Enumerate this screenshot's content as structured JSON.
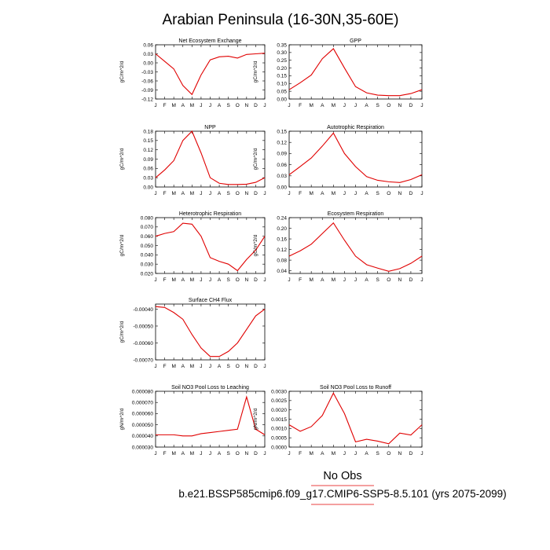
{
  "title": "Arabian Peninsula (16-30N,35-60E)",
  "footer": {
    "obs_label": "No Obs",
    "run_label": "b.e21.BSSP585cmip6.f09_g17.CMIP6-SSP5-8.5.101 (yrs 2075-2099)"
  },
  "colors": {
    "series": "#e00000",
    "footer_line": "#e00000"
  },
  "chart_data": [
    {
      "type": "line",
      "title": "Net Ecosystem Exchange",
      "ylabel": "gC/m^2/d",
      "x": [
        "J",
        "F",
        "M",
        "A",
        "M",
        "J",
        "J",
        "A",
        "S",
        "O",
        "N",
        "D",
        "J"
      ],
      "yticks": [
        "0.06",
        "0.03",
        "0.00",
        "-0.03",
        "-0.06",
        "-0.09",
        "-0.12"
      ],
      "ylim": [
        -0.12,
        0.06
      ],
      "series": [
        {
          "values": [
            0.03,
            0.005,
            -0.02,
            -0.075,
            -0.105,
            -0.04,
            0.01,
            0.02,
            0.022,
            0.016,
            0.028,
            0.03,
            0.032
          ]
        }
      ]
    },
    {
      "type": "line",
      "title": "GPP",
      "ylabel": "gC/m^2/d",
      "x": [
        "J",
        "F",
        "M",
        "A",
        "M",
        "J",
        "J",
        "A",
        "S",
        "O",
        "N",
        "D",
        "J"
      ],
      "yticks": [
        "0.35",
        "0.30",
        "0.25",
        "0.20",
        "0.15",
        "0.10",
        "0.05",
        "0.00"
      ],
      "ylim": [
        0,
        0.35
      ],
      "series": [
        {
          "values": [
            0.06,
            0.105,
            0.155,
            0.26,
            0.325,
            0.2,
            0.08,
            0.04,
            0.025,
            0.022,
            0.022,
            0.035,
            0.06
          ]
        }
      ]
    },
    {
      "type": "line",
      "title": "NPP",
      "ylabel": "gC/m^2/d",
      "x": [
        "J",
        "F",
        "M",
        "A",
        "M",
        "J",
        "J",
        "A",
        "S",
        "O",
        "N",
        "D",
        "J"
      ],
      "yticks": [
        "0.18",
        "0.15",
        "0.12",
        "0.09",
        "0.06",
        "0.03",
        "0.00"
      ],
      "ylim": [
        0,
        0.18
      ],
      "series": [
        {
          "values": [
            0.03,
            0.055,
            0.085,
            0.15,
            0.18,
            0.11,
            0.03,
            0.012,
            0.008,
            0.008,
            0.009,
            0.015,
            0.03
          ]
        }
      ]
    },
    {
      "type": "line",
      "title": "Autotrophic Respiration",
      "ylabel": "gC/m^2/d",
      "x": [
        "J",
        "F",
        "M",
        "A",
        "M",
        "J",
        "J",
        "A",
        "S",
        "O",
        "N",
        "D",
        "J"
      ],
      "yticks": [
        "0.15",
        "0.12",
        "0.09",
        "0.06",
        "0.03",
        "0.00"
      ],
      "ylim": [
        0,
        0.15
      ],
      "series": [
        {
          "values": [
            0.033,
            0.055,
            0.078,
            0.11,
            0.145,
            0.09,
            0.055,
            0.028,
            0.018,
            0.014,
            0.012,
            0.02,
            0.033
          ]
        }
      ]
    },
    {
      "type": "line",
      "title": "Heterotrophic Respiration",
      "ylabel": "gC/m^2/d",
      "x": [
        "J",
        "F",
        "M",
        "A",
        "M",
        "J",
        "J",
        "A",
        "S",
        "O",
        "N",
        "D",
        "J"
      ],
      "yticks": [
        "0.080",
        "0.070",
        "0.060",
        "0.050",
        "0.040",
        "0.030",
        "0.020"
      ],
      "ylim": [
        0.02,
        0.08
      ],
      "series": [
        {
          "values": [
            0.06,
            0.063,
            0.065,
            0.074,
            0.073,
            0.06,
            0.037,
            0.033,
            0.03,
            0.023,
            0.035,
            0.045,
            0.06
          ]
        }
      ]
    },
    {
      "type": "line",
      "title": "Ecosystem Respiration",
      "ylabel": "gC/m^2/d",
      "x": [
        "J",
        "F",
        "M",
        "A",
        "M",
        "J",
        "J",
        "A",
        "S",
        "O",
        "N",
        "D",
        "J"
      ],
      "yticks": [
        "0.24",
        "0.20",
        "0.16",
        "0.12",
        "0.08",
        "0.04"
      ],
      "ylim": [
        0.03,
        0.24
      ],
      "series": [
        {
          "values": [
            0.095,
            0.115,
            0.14,
            0.18,
            0.22,
            0.155,
            0.095,
            0.063,
            0.05,
            0.038,
            0.048,
            0.068,
            0.095
          ]
        }
      ]
    },
    {
      "type": "line",
      "title": "Surface CH4 Flux",
      "ylabel": "gC/m^2/d",
      "x": [
        "J",
        "F",
        "M",
        "A",
        "M",
        "J",
        "J",
        "A",
        "S",
        "O",
        "N",
        "D",
        "J"
      ],
      "yticks": [
        "-0.00040",
        "-0.00050",
        "-0.00060",
        "-0.00070"
      ],
      "ylim": [
        -0.0007,
        -0.00037
      ],
      "series": [
        {
          "values": [
            -0.000385,
            -0.00039,
            -0.00042,
            -0.00046,
            -0.00055,
            -0.00063,
            -0.00068,
            -0.00068,
            -0.00065,
            -0.0006,
            -0.00052,
            -0.00044,
            -0.0004
          ]
        }
      ]
    },
    {
      "type": "line",
      "title": "Soil NO3 Pool Loss to Leaching",
      "ylabel": "gN/m^2/d",
      "x": [
        "J",
        "F",
        "M",
        "A",
        "M",
        "J",
        "J",
        "A",
        "S",
        "O",
        "N",
        "D",
        "J"
      ],
      "yticks": [
        "0.000080",
        "0.000070",
        "0.000060",
        "0.000050",
        "0.000040",
        "0.000030"
      ],
      "ylim": [
        3e-05,
        8e-05
      ],
      "series": [
        {
          "values": [
            4.1e-05,
            4.1e-05,
            4.1e-05,
            4e-05,
            4e-05,
            4.2e-05,
            4.3e-05,
            4.4e-05,
            4.5e-05,
            4.6e-05,
            7.5e-05,
            4.6e-05,
            4.1e-05
          ]
        }
      ]
    },
    {
      "type": "line",
      "title": "Soil NO3 Pool Loss to Runoff",
      "ylabel": "gN/m^2/d",
      "x": [
        "J",
        "F",
        "M",
        "A",
        "M",
        "J",
        "J",
        "A",
        "S",
        "O",
        "N",
        "D",
        "J"
      ],
      "yticks": [
        "0.0030",
        "0.0025",
        "0.0020",
        "0.0015",
        "0.0010",
        "0.0005",
        "0.0000"
      ],
      "ylim": [
        0,
        0.003
      ],
      "series": [
        {
          "values": [
            0.0012,
            0.00085,
            0.0011,
            0.0017,
            0.0029,
            0.0018,
            0.00028,
            0.00042,
            0.00032,
            0.00018,
            0.00075,
            0.00065,
            0.0012
          ]
        }
      ]
    }
  ]
}
